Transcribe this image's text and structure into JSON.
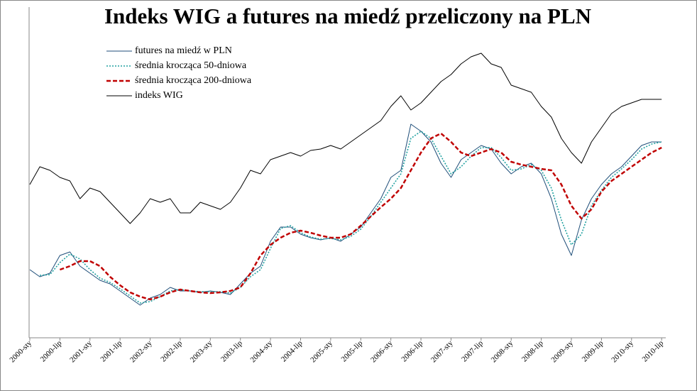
{
  "chart_data": {
    "type": "line",
    "title": "Indeks WIG a futures na miedź przeliczony na PLN",
    "categories": [
      "2000-sty",
      null,
      null,
      "2000-lip",
      null,
      null,
      "2001-sty",
      null,
      null,
      "2001-lip",
      null,
      null,
      "2002-sty",
      null,
      null,
      "2002-lip",
      null,
      null,
      "2003-sty",
      null,
      null,
      "2003-lip",
      null,
      null,
      "2004-sty",
      null,
      null,
      "2004-lip",
      null,
      null,
      "2005-sty",
      null,
      null,
      "2005-lip",
      null,
      null,
      "2006-sty",
      null,
      null,
      "2006-lip",
      null,
      null,
      "2007-sty",
      null,
      null,
      "2007-lip",
      null,
      null,
      "2008-sty",
      null,
      null,
      "2008-lip",
      null,
      null,
      "2009-sty",
      null,
      null,
      "2009-lip",
      null,
      null,
      "2010-sty",
      null,
      null,
      "2010-lip"
    ],
    "ylim": [
      0,
      466
    ],
    "legend": "upper left",
    "series": [
      {
        "name": "futures na miedź w PLN",
        "color": "#1f4e79",
        "style": "solid",
        "width": 1,
        "values": [
          96,
          86,
          91,
          116,
          121,
          101,
          91,
          81,
          76,
          66,
          56,
          46,
          56,
          61,
          71,
          66,
          66,
          64,
          66,
          64,
          61,
          76,
          91,
          101,
          136,
          156,
          156,
          146,
          141,
          138,
          141,
          136,
          146,
          156,
          176,
          196,
          226,
          236,
          301,
          291,
          276,
          246,
          226,
          251,
          261,
          271,
          266,
          246,
          231,
          241,
          246,
          231,
          196,
          146,
          116,
          166,
          196,
          216,
          231,
          241,
          256,
          271,
          276,
          276
        ]
      },
      {
        "name": "średnia krocząca  50-dniowa",
        "color": "#20a0a0",
        "style": "dotted",
        "width": 1.6,
        "values": [
          null,
          88,
          89,
          106,
          118,
          111,
          96,
          84,
          78,
          69,
          59,
          49,
          51,
          58,
          66,
          68,
          66,
          65,
          65,
          65,
          63,
          71,
          86,
          96,
          126,
          154,
          158,
          148,
          142,
          139,
          140,
          138,
          143,
          153,
          171,
          191,
          211,
          231,
          281,
          291,
          281,
          256,
          231,
          241,
          256,
          268,
          268,
          254,
          236,
          238,
          244,
          236,
          211,
          166,
          131,
          146,
          186,
          208,
          226,
          238,
          251,
          266,
          273,
          276
        ]
      },
      {
        "name": "średnia krocząca  200-dniowa",
        "color": "#c00000",
        "style": "dashed",
        "width": 2.5,
        "values": [
          null,
          null,
          null,
          96,
          101,
          108,
          108,
          101,
          86,
          74,
          64,
          58,
          54,
          58,
          64,
          68,
          66,
          64,
          63,
          64,
          66,
          71,
          91,
          116,
          131,
          141,
          148,
          151,
          148,
          144,
          141,
          141,
          146,
          158,
          171,
          184,
          196,
          211,
          236,
          261,
          281,
          288,
          276,
          261,
          256,
          261,
          266,
          261,
          248,
          244,
          241,
          238,
          236,
          216,
          186,
          168,
          181,
          206,
          221,
          231,
          241,
          251,
          261,
          268
        ]
      },
      {
        "name": "indeks WIG",
        "color": "#000000",
        "style": "solid",
        "width": 1,
        "values": [
          216,
          241,
          236,
          226,
          221,
          196,
          211,
          206,
          191,
          176,
          161,
          176,
          196,
          191,
          196,
          176,
          176,
          191,
          186,
          181,
          191,
          211,
          236,
          231,
          251,
          256,
          261,
          256,
          264,
          266,
          271,
          266,
          276,
          286,
          296,
          306,
          326,
          341,
          321,
          331,
          346,
          361,
          371,
          386,
          396,
          401,
          386,
          381,
          356,
          351,
          346,
          326,
          311,
          281,
          261,
          246,
          276,
          296,
          316,
          326,
          331,
          336,
          336,
          336
        ]
      }
    ]
  }
}
